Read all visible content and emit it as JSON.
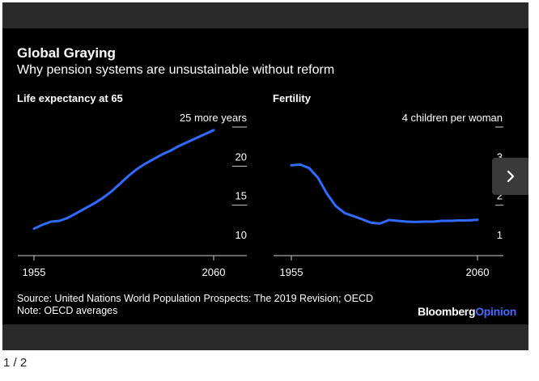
{
  "header": {
    "title": "Global Graying",
    "subtitle": "Why pension systems are unsustainable without reform"
  },
  "footer": {
    "source": "Source: United Nations World Population Prospects: The 2019 Revision; OECD",
    "note": "Note: OECD averages",
    "brand_part1": "Bloomberg",
    "brand_part2": "Opinion"
  },
  "gallery": {
    "counter": "1 / 2",
    "next_icon": "chevron-right-icon"
  },
  "colors": {
    "background": "#000000",
    "line": "#2f6bff",
    "text": "#ffffff",
    "brand_accent": "#4a68ff"
  },
  "chart_data": [
    {
      "type": "line",
      "title": "Life expectancy at 65",
      "x_tick_labels": [
        "1955",
        "2060"
      ],
      "xlim": [
        1955,
        2060
      ],
      "ylim": [
        10,
        25
      ],
      "y_ticks": [
        {
          "value": 25,
          "label": "25 more years"
        },
        {
          "value": 20,
          "label": "20"
        },
        {
          "value": 15,
          "label": "15"
        },
        {
          "value": 10,
          "label": "10"
        }
      ],
      "series": [
        {
          "x": [
            1955,
            1960,
            1965,
            1970,
            1975,
            1980,
            1985,
            1990,
            1995,
            2000,
            2005,
            2010,
            2015,
            2020,
            2025,
            2030,
            2035,
            2040,
            2045,
            2050,
            2055,
            2060
          ],
          "values": [
            12.0,
            12.5,
            12.9,
            13.0,
            13.4,
            14.0,
            14.6,
            15.2,
            15.9,
            16.7,
            17.7,
            18.7,
            19.6,
            20.3,
            20.9,
            21.5,
            22.0,
            22.6,
            23.1,
            23.6,
            24.1,
            24.6
          ]
        }
      ]
    },
    {
      "type": "line",
      "title": "Fertility",
      "x_tick_labels": [
        "1955",
        "2060"
      ],
      "xlim": [
        1955,
        2060
      ],
      "ylim": [
        1,
        4
      ],
      "y_ticks": [
        {
          "value": 4,
          "label": "4 children per woman"
        },
        {
          "value": 3,
          "label": "3"
        },
        {
          "value": 2,
          "label": "2"
        },
        {
          "value": 1,
          "label": "1"
        }
      ],
      "series": [
        {
          "x": [
            1955,
            1960,
            1965,
            1970,
            1975,
            1980,
            1985,
            1990,
            1995,
            2000,
            2005,
            2010,
            2015,
            2020,
            2025,
            2030,
            2035,
            2040,
            2045,
            2050,
            2055,
            2060
          ],
          "values": [
            3.02,
            3.04,
            2.95,
            2.7,
            2.3,
            1.98,
            1.8,
            1.72,
            1.64,
            1.55,
            1.53,
            1.62,
            1.6,
            1.58,
            1.57,
            1.58,
            1.58,
            1.6,
            1.6,
            1.61,
            1.61,
            1.63
          ]
        }
      ]
    }
  ]
}
